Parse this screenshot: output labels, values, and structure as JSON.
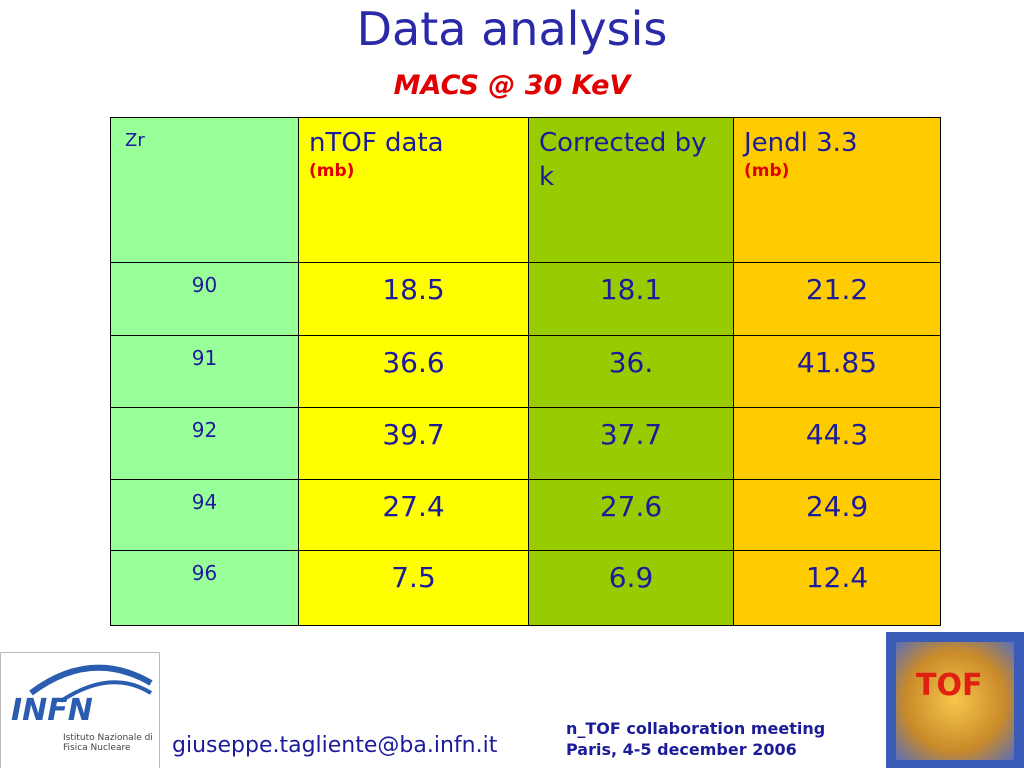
{
  "header": {
    "title": "Data analysis",
    "subtitle": "MACS @ 30 KeV"
  },
  "table": {
    "header": [
      {
        "text": "Zr"
      },
      {
        "text": "nTOF data",
        "unit": "(mb)"
      },
      {
        "text": "Corrected by k"
      },
      {
        "text": "Jendl 3.3",
        "unit": "(mb)"
      }
    ],
    "rows": [
      [
        "90",
        "18.5",
        "18.1",
        "21.2"
      ],
      [
        "91",
        "36.6",
        "36.",
        "41.85"
      ],
      [
        "92",
        "39.7",
        "37.7",
        "44.3"
      ],
      [
        "94",
        "27.4",
        "27.6",
        "24.9"
      ],
      [
        "96",
        "7.5",
        "6.9",
        "12.4"
      ]
    ]
  },
  "footer": {
    "email": "giuseppe.tagliente@ba.infn.it",
    "meeting": [
      "n_TOF collaboration meeting",
      "Paris, 4-5 december 2006"
    ]
  },
  "logos": {
    "infn": {
      "name": "INFN",
      "caption": "Istituto Nazionale di Fisica Nucleare"
    },
    "tof": "TOF"
  }
}
